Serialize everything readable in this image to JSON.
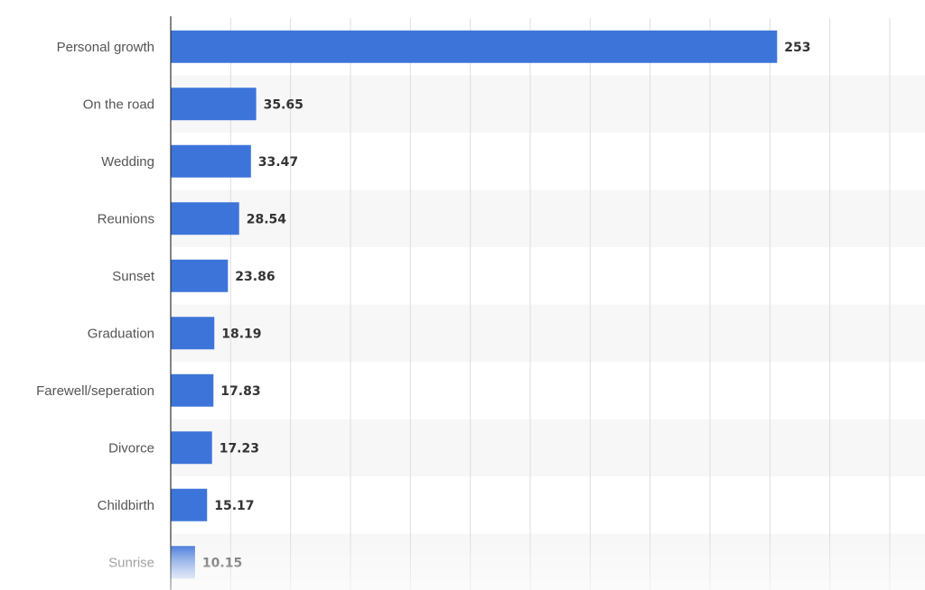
{
  "chart_data": {
    "type": "bar",
    "orientation": "horizontal",
    "categories": [
      "Personal growth",
      "On the road",
      "Wedding",
      "Reunions",
      "Sunset",
      "Graduation",
      "Farewell/seperation",
      "Divorce",
      "Childbirth",
      "Sunrise"
    ],
    "values": [
      253,
      35.65,
      33.47,
      28.54,
      23.86,
      18.19,
      17.83,
      17.23,
      15.17,
      10.15
    ],
    "value_labels": [
      "253",
      "35.65",
      "33.47",
      "28.54",
      "23.86",
      "18.19",
      "17.83",
      "17.23",
      "15.17",
      "10.15"
    ],
    "xlim": [
      0,
      300
    ],
    "grid": true,
    "title": "",
    "xlabel": "",
    "ylabel": "",
    "colors": {
      "bar": "#3d74d9",
      "band": "#f7f7f7",
      "grid": "#dddddd",
      "axis": "#333333"
    }
  }
}
